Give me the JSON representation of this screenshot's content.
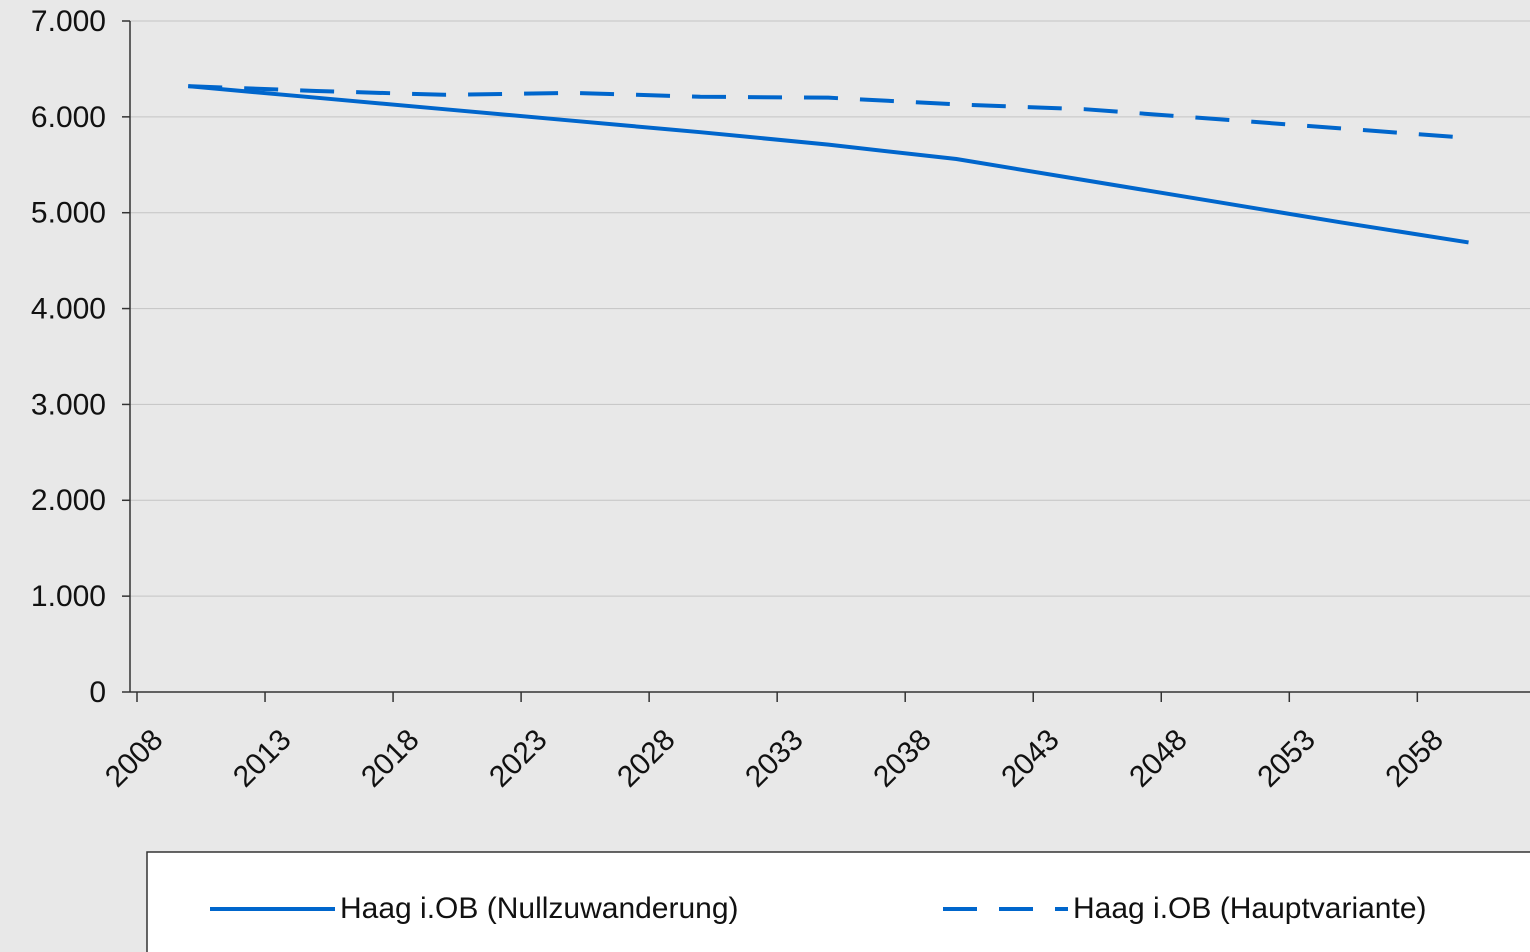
{
  "chart_data": {
    "type": "line",
    "x": [
      2010,
      2015,
      2020,
      2025,
      2030,
      2035,
      2040,
      2045,
      2050,
      2055,
      2060
    ],
    "series": [
      {
        "name": "Haag i.OB (Nullzuwanderung)",
        "color": "#0066cc",
        "dash": false,
        "values": [
          6320,
          6200,
          6080,
          5960,
          5840,
          5710,
          5560,
          5340,
          5120,
          4900,
          4690
        ]
      },
      {
        "name": "Haag i.OB (Hauptvariante)",
        "color": "#0066cc",
        "dash": true,
        "values": [
          6320,
          6270,
          6230,
          6250,
          6210,
          6200,
          6130,
          6080,
          5980,
          5880,
          5780
        ]
      }
    ],
    "xlim": [
      2008,
      2062.4
    ],
    "xticks": [
      2008,
      2013,
      2018,
      2023,
      2028,
      2033,
      2038,
      2043,
      2048,
      2053,
      2058
    ],
    "ylim": [
      0,
      7000
    ],
    "yticks": [
      0,
      {
        "value": 1000,
        "label": "1.000"
      },
      {
        "value": 2000,
        "label": "2.000"
      },
      {
        "value": 3000,
        "label": "3.000"
      },
      {
        "value": 4000,
        "label": "4.000"
      },
      {
        "value": 5000,
        "label": "5.000"
      },
      {
        "value": 6000,
        "label": "6.000"
      },
      {
        "value": 7000,
        "label": "7.000"
      }
    ],
    "grid": true,
    "legend": "bottom"
  }
}
